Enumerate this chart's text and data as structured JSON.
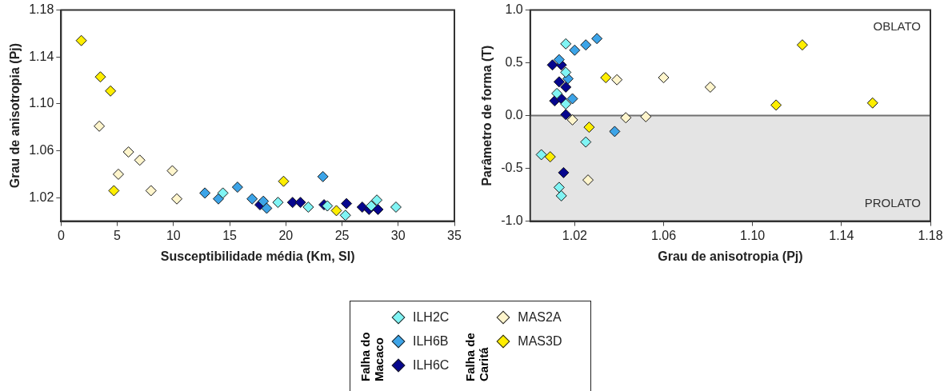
{
  "chart_data": [
    {
      "type": "scatter",
      "xlabel": "Susceptibilidade média (Km, SI)",
      "ylabel": "Grau de anisotropia (Pj)",
      "annotations": [
        "Falha do Macaco",
        "Falha de Caritá"
      ],
      "xlim": [
        0,
        35
      ],
      "xticks": [
        0,
        5,
        10,
        15,
        20,
        25,
        30,
        35
      ],
      "ylim": [
        1.0,
        1.18
      ],
      "yticks": [
        1.02,
        1.06,
        {
          "value": 1.1,
          "label": "1.10"
        },
        1.14,
        1.18
      ],
      "grid": false,
      "legend": "bottom",
      "marker": "diamond",
      "series": [
        {
          "name": "ILH2C",
          "color": "#80f4f4",
          "x": [
            14.4,
            19.3,
            22.0,
            23.7,
            25.3,
            27.6,
            28.1,
            29.8
          ],
          "values": [
            1.024,
            1.016,
            1.012,
            1.013,
            1.005,
            1.013,
            1.018,
            1.012
          ]
        },
        {
          "name": "ILH6B",
          "color": "#3ca4e8",
          "x": [
            12.8,
            14.0,
            15.7,
            17.0,
            18.0,
            18.3,
            23.3
          ],
          "values": [
            1.024,
            1.019,
            1.029,
            1.019,
            1.017,
            1.011,
            1.038
          ]
        },
        {
          "name": "ILH6C",
          "color": "#06068e",
          "x": [
            17.7,
            20.6,
            21.3,
            23.4,
            25.4,
            26.8,
            27.4,
            28.2
          ],
          "values": [
            1.014,
            1.016,
            1.016,
            1.014,
            1.015,
            1.012,
            1.01,
            1.01
          ]
        },
        {
          "name": "MAS2A",
          "color": "#fff5cc",
          "x": [
            3.4,
            6.0,
            7.0,
            5.1,
            9.9,
            8.0,
            10.3
          ],
          "values": [
            1.081,
            1.059,
            1.052,
            1.04,
            1.043,
            1.026,
            1.019
          ]
        },
        {
          "name": "MAS3D",
          "color": "#ffee00",
          "x": [
            1.8,
            3.5,
            4.4,
            4.7,
            19.8,
            24.5
          ],
          "values": [
            1.154,
            1.123,
            1.111,
            1.026,
            1.034,
            1.009
          ]
        }
      ]
    },
    {
      "type": "scatter",
      "xlabel": "Grau de anisotropia (Pj)",
      "ylabel": "Parâmetro de forma (T)",
      "annotations": [
        "OBLATO",
        "PROLATO"
      ],
      "xlim": [
        1.0,
        1.18
      ],
      "xticks": [
        1.02,
        1.06,
        {
          "value": 1.1,
          "label": "1.10"
        },
        1.14,
        1.18
      ],
      "ylim": [
        -1,
        1
      ],
      "yticks": [
        {
          "value": -1,
          "label": "-1.0"
        },
        -0.5,
        {
          "value": 0,
          "label": "0.0"
        },
        0.5,
        {
          "value": 1,
          "label": "1.0"
        }
      ],
      "grid": false,
      "marker": "diamond",
      "bands": [
        {
          "axis": "y",
          "from": -1,
          "to": 0,
          "color": "#e4e4e4"
        }
      ],
      "ref_lines": [
        {
          "axis": "y",
          "value": 0,
          "color": "#707070"
        }
      ],
      "series": [
        {
          "color": "#80f4f4",
          "x": [
            1.016,
            1.016,
            1.012,
            1.016,
            1.025,
            1.005,
            1.013,
            1.014
          ],
          "values": [
            0.68,
            0.41,
            0.21,
            0.11,
            -0.25,
            -0.37,
            -0.68,
            -0.76
          ]
        },
        {
          "color": "#3ca4e8",
          "x": [
            1.03,
            1.025,
            1.02,
            1.013,
            1.017,
            1.019,
            1.038
          ],
          "values": [
            0.73,
            0.67,
            0.62,
            0.53,
            0.35,
            0.16,
            -0.15
          ]
        },
        {
          "color": "#06068e",
          "x": [
            1.01,
            1.014,
            1.013,
            1.016,
            1.011,
            1.014,
            1.016,
            1.015
          ],
          "values": [
            0.48,
            0.48,
            0.32,
            0.27,
            0.14,
            0.16,
            0.01,
            -0.54
          ]
        },
        {
          "color": "#fff5cc",
          "x": [
            1.039,
            1.06,
            1.081,
            1.043,
            1.052,
            1.019,
            1.026
          ],
          "values": [
            0.34,
            0.36,
            0.27,
            -0.02,
            -0.01,
            -0.04,
            -0.61
          ]
        },
        {
          "color": "#ffee00",
          "x": [
            1.1224,
            1.1106,
            1.154,
            1.034,
            1.0265,
            1.009
          ],
          "values": [
            0.67,
            0.1,
            0.12,
            0.36,
            -0.11,
            -0.39
          ]
        }
      ]
    }
  ]
}
